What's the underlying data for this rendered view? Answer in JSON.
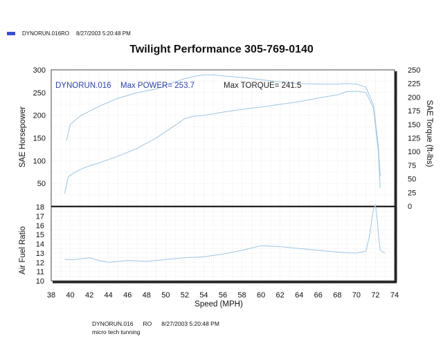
{
  "legend": {
    "run_id": "DYNORUN.016RO",
    "datetime": "8/27/2003 5:20:48 PM",
    "color": "#3a4fd0"
  },
  "title": "Twilight Performance 305-769-0140",
  "header_info": {
    "run_name": "DYNORUN.016",
    "max_power_label": "Max POWER= 253.7",
    "max_torque_label": "Max TORQUE= 241.5"
  },
  "footer": {
    "run_id": "DYNORUN.016",
    "code": "RO",
    "datetime": "8/27/2003 5:20:48 PM",
    "note": "micro tech tunning"
  },
  "chart_data": [
    {
      "type": "line",
      "xlabel": "Speed (MPH)",
      "ylabel": "SAE Horsepower",
      "y2label": "SAE Torque (ft-lbs)",
      "xlim": [
        38,
        74
      ],
      "ylim": [
        0,
        300
      ],
      "y2lim": [
        0,
        250
      ],
      "x_ticks": [
        38,
        40,
        42,
        44,
        46,
        48,
        50,
        52,
        54,
        56,
        58,
        60,
        62,
        64,
        66,
        68,
        70,
        72,
        74
      ],
      "y_ticks": [
        50,
        100,
        150,
        200,
        250,
        300
      ],
      "y2_ticks": [
        0,
        25,
        50,
        75,
        100,
        125,
        150,
        175,
        200,
        225,
        250
      ],
      "grid": true,
      "series": [
        {
          "axis": "left",
          "color": "#9fc4e0",
          "x": [
            39.4,
            39.8,
            40.5,
            41.5,
            43,
            45,
            47,
            49,
            51,
            52,
            53,
            54,
            55,
            56,
            58,
            60,
            62,
            64,
            66,
            68,
            69,
            70,
            71,
            71.8,
            72.3,
            72.5
          ],
          "y": [
            28,
            65,
            75,
            85,
            95,
            110,
            127,
            150,
            178,
            193,
            198,
            200,
            203,
            207,
            213,
            218,
            224,
            230,
            238,
            245,
            252,
            253,
            250,
            215,
            120,
            40
          ]
        },
        {
          "axis": "right",
          "color": "#9fc4e0",
          "x": [
            39.6,
            40,
            41,
            43,
            45,
            47,
            49,
            50,
            51,
            52,
            53,
            54,
            55,
            56,
            58,
            60,
            62,
            64,
            66,
            68,
            69,
            70,
            71,
            71.8,
            72.3,
            72.5
          ],
          "y": [
            120,
            150,
            165,
            183,
            198,
            208,
            215,
            222,
            228,
            234,
            238,
            241,
            241,
            239,
            236,
            232,
            228,
            225,
            224,
            224,
            225,
            224,
            218,
            185,
            110,
            55
          ]
        }
      ]
    },
    {
      "type": "line",
      "ylabel": "Air Fuel Ratio",
      "ylim": [
        10,
        18
      ],
      "y_ticks": [
        10,
        11,
        12,
        13,
        14,
        15,
        16,
        17,
        18
      ],
      "grid": true,
      "series": [
        {
          "color": "#9fc4e0",
          "x": [
            39.4,
            40.5,
            42,
            43,
            44,
            46,
            48,
            50,
            52,
            54,
            56,
            58,
            60,
            62,
            64,
            66,
            68,
            70,
            71,
            71.4,
            71.6,
            71.8,
            72,
            72.2,
            72.3,
            72.5,
            73
          ],
          "y": [
            12.3,
            12.3,
            12.5,
            12.2,
            12.0,
            12.2,
            12.1,
            12.3,
            12.5,
            12.6,
            12.9,
            13.3,
            13.8,
            13.7,
            13.5,
            13.3,
            13.1,
            13.0,
            13.2,
            15.0,
            16.5,
            17.8,
            18.2,
            16.5,
            15.0,
            13.3,
            13.0
          ]
        }
      ]
    }
  ]
}
